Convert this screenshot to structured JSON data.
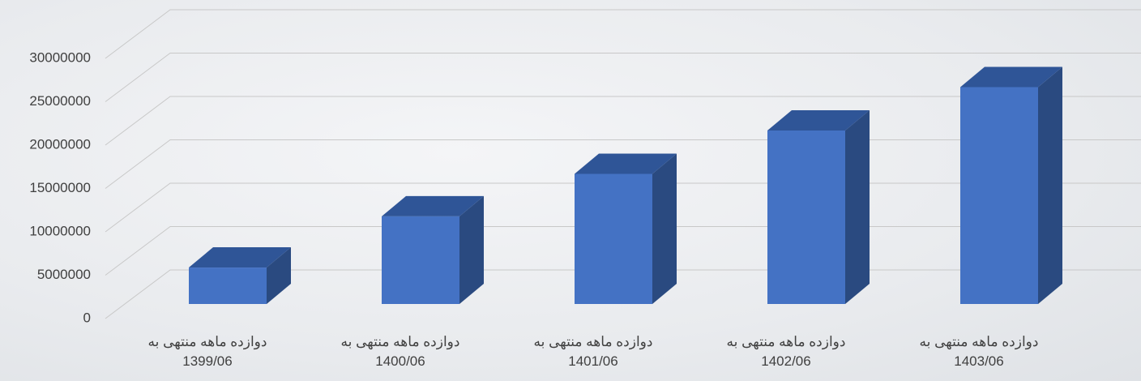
{
  "chart_data": {
    "type": "bar3d",
    "categories": [
      "دوازده ماهه منتهی به\n1399/06",
      "دوازده ماهه منتهی به\n1400/06",
      "دوازده ماهه منتهی به\n1401/06",
      "دوازده ماهه منتهی به\n1402/06",
      "دوازده ماهه منتهی به\n1403/06"
    ],
    "values": [
      4200000,
      10100000,
      15000000,
      20000000,
      25000000
    ],
    "color": "#4472c4",
    "ylim": [
      0,
      30000000
    ],
    "yticks": [
      0,
      5000000,
      10000000,
      15000000,
      20000000,
      25000000,
      30000000
    ],
    "grid": true
  }
}
